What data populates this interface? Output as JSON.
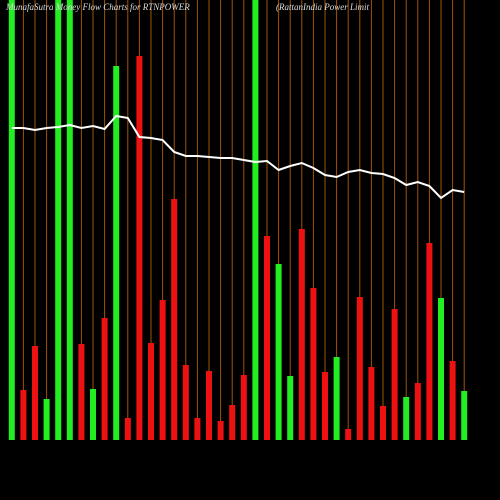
{
  "chart_data": {
    "type": "bar",
    "title": "MunafaSutra  Money Flow  Charts for RTNPOWER",
    "subtitle": "(RattanIndia  Power Limit",
    "ylim": [
      0,
      440
    ],
    "y2lim": [
      0,
      440
    ],
    "grid": true,
    "grid_color": "#a0520a",
    "up_color": "#22ee22",
    "down_color": "#ee1111",
    "line_color": "#ffffff",
    "series": [
      {
        "name": "Money Flow",
        "direction": [
          "up",
          "down",
          "down",
          "up",
          "up",
          "up",
          "down",
          "up",
          "down",
          "up",
          "down",
          "down",
          "down",
          "down",
          "down",
          "down",
          "down",
          "down",
          "down",
          "down",
          "down",
          "up",
          "down",
          "up",
          "up",
          "down",
          "down",
          "down",
          "up",
          "down",
          "down",
          "down",
          "down",
          "down",
          "up",
          "down",
          "down",
          "up",
          "down",
          "up"
        ],
        "values": [
          440,
          50,
          94,
          41,
          440,
          440,
          96,
          51,
          122,
          374,
          22,
          384,
          97,
          140,
          241,
          75,
          22,
          69,
          19,
          35,
          65,
          440,
          204,
          176,
          64,
          211,
          152,
          68,
          83,
          11,
          143,
          73,
          34,
          131,
          43,
          57,
          197,
          142,
          79,
          49
        ]
      },
      {
        "name": "Price",
        "axis": "y2",
        "values": [
          312,
          312,
          310,
          312,
          313,
          315,
          312,
          314,
          311,
          324,
          322,
          303,
          302,
          300,
          288,
          284,
          284,
          283,
          282,
          282,
          280,
          278,
          279,
          270,
          274,
          277,
          272,
          265,
          263,
          268,
          270,
          267,
          266,
          262,
          255,
          258,
          254,
          242,
          250,
          248
        ]
      }
    ]
  }
}
